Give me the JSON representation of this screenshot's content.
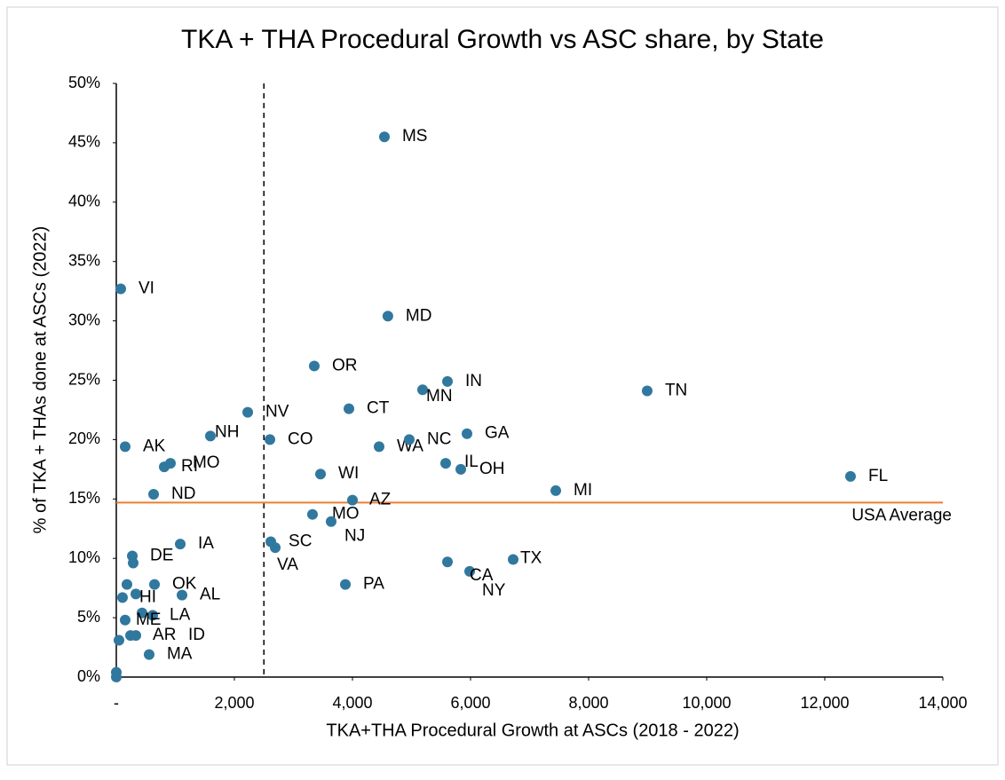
{
  "chart_data": {
    "type": "scatter",
    "title": "TKA + THA Procedural Growth vs ASC share, by State",
    "x_label": "TKA+THA Procedural Growth at ASCs (2018 - 2022)",
    "y_label": "% of TKA + THAs done at ASCs (2022)",
    "xlim": [
      0,
      14000
    ],
    "xticks": [
      {
        "value": 0,
        "label": "-"
      },
      {
        "value": 2000,
        "label": "2,000"
      },
      {
        "value": 4000,
        "label": "4,000"
      },
      {
        "value": 6000,
        "label": "6,000"
      },
      {
        "value": 8000,
        "label": "8,000"
      },
      {
        "value": 10000,
        "label": "10,000"
      },
      {
        "value": 12000,
        "label": "12,000"
      },
      {
        "value": 14000,
        "label": "14,000"
      }
    ],
    "ylim": [
      0,
      50
    ],
    "yticks": [
      {
        "value": 0,
        "label": "0%"
      },
      {
        "value": 5,
        "label": "5%"
      },
      {
        "value": 10,
        "label": "10%"
      },
      {
        "value": 15,
        "label": "15%"
      },
      {
        "value": 20,
        "label": "20%"
      },
      {
        "value": 25,
        "label": "25%"
      },
      {
        "value": 30,
        "label": "30%"
      },
      {
        "value": 35,
        "label": "35%"
      },
      {
        "value": 40,
        "label": "40%"
      },
      {
        "value": 45,
        "label": "45%"
      },
      {
        "value": 50,
        "label": "50%"
      }
    ],
    "grid": false,
    "reference_lines": {
      "x": 2500,
      "y": 14.7,
      "y_label": "USA Average",
      "y_color": "#ed7d31"
    },
    "series": [
      {
        "color": "#31789f",
        "x": [
          4541,
          75,
          4600,
          3353,
          5609,
          5188,
          8992,
          2226,
          3940,
          1594,
          2602,
          150,
          4451,
          4962,
          5940,
          812,
          917,
          5579,
          5835,
          3459,
          12436,
          7444,
          632,
          4000,
          3323,
          3639,
          1083,
          2617,
          2692,
          271,
          286,
          6722,
          5985,
          5609,
          3880,
          647,
          180,
          1113,
          331,
          105,
          617,
          436,
          150,
          241,
          331,
          45,
          556,
          0,
          0
        ],
        "values": [
          45.5,
          32.7,
          30.4,
          26.2,
          24.9,
          24.2,
          24.1,
          22.3,
          22.6,
          20.3,
          20.0,
          19.4,
          19.4,
          20.0,
          20.5,
          17.7,
          18.0,
          18.0,
          17.5,
          17.1,
          16.9,
          15.7,
          15.4,
          14.9,
          13.7,
          13.1,
          11.2,
          11.4,
          10.9,
          10.2,
          9.6,
          9.9,
          8.9,
          9.7,
          7.8,
          7.8,
          7.8,
          6.9,
          7.0,
          6.7,
          5.2,
          5.4,
          4.8,
          3.5,
          3.5,
          3.1,
          1.9,
          0.4,
          0
        ],
        "labels": [
          "MS",
          "VI",
          "MD",
          "OR",
          "IN",
          "MN",
          "TN",
          "NV",
          "CT",
          "NH",
          "CO",
          "AK",
          "WA",
          "NC",
          "GA",
          "RI",
          "MO",
          "IL",
          "OH",
          "WI",
          "FL",
          "MI",
          "ND",
          "AZ",
          "MO",
          "NJ",
          "IA",
          "SC",
          "VA",
          "DE",
          null,
          "TX",
          "NY",
          "CA",
          "PA",
          "OK",
          null,
          "AL",
          "HI",
          null,
          "LA",
          null,
          "ME",
          "AR",
          "ID",
          null,
          "MA",
          null,
          null
        ]
      }
    ]
  }
}
